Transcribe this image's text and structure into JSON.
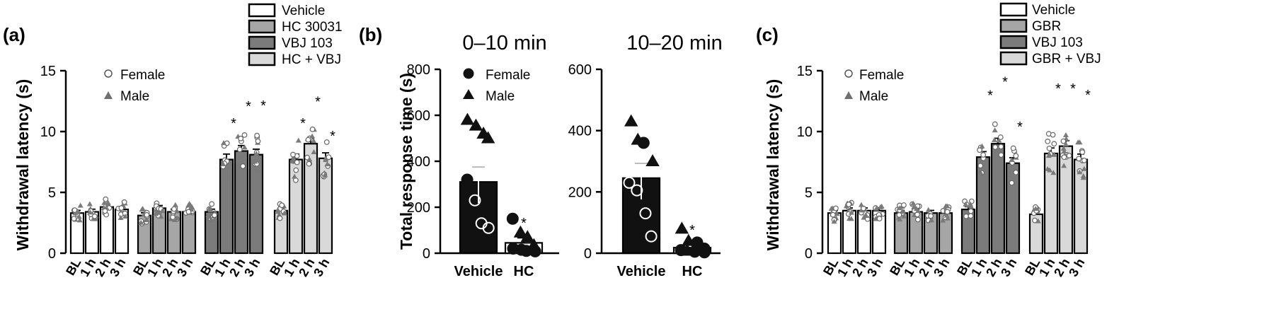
{
  "figure": {
    "colors": {
      "vehicle": "#ffffff",
      "drug_a": "#a6a6a6",
      "vbj": "#7b7b7b",
      "combo": "#d9d9d9",
      "black": "#111111",
      "male_marker": "#808080",
      "female_marker": "#ffffff"
    }
  },
  "chart_data": [
    {
      "panel_label": "(a)",
      "type": "bar",
      "ylabel": "Withdrawal latency (s)",
      "ylim": [
        0,
        15
      ],
      "yticks": [
        "0",
        "5",
        "10",
        "15"
      ],
      "legend": [
        "Vehicle",
        "HC 30031",
        "VBJ 103",
        "HC + VBJ"
      ],
      "marker_legend": [
        "Female",
        "Male"
      ],
      "timepoints": [
        "BL",
        "1 h",
        "2 h",
        "3 h"
      ],
      "series": [
        {
          "name": "Vehicle",
          "color_key": "vehicle",
          "values": [
            3.3,
            3.4,
            3.8,
            3.6
          ],
          "sig": [
            false,
            false,
            false,
            false
          ]
        },
        {
          "name": "HC 30031",
          "color_key": "drug_a",
          "values": [
            3.1,
            3.7,
            3.4,
            3.4
          ],
          "sig": [
            false,
            false,
            false,
            false
          ]
        },
        {
          "name": "VBJ 103",
          "color_key": "vbj",
          "values": [
            3.4,
            7.7,
            8.4,
            8.1
          ],
          "sig": [
            false,
            true,
            true,
            true
          ]
        },
        {
          "name": "HC + VBJ",
          "color_key": "combo",
          "values": [
            3.5,
            7.7,
            9.0,
            7.8
          ],
          "sig": [
            false,
            true,
            true,
            true
          ]
        }
      ]
    },
    {
      "panel_label": "(b)",
      "type": "bar",
      "ylabel": "Total response time (s)",
      "marker_legend": [
        "Female",
        "Male"
      ],
      "subpanels": [
        {
          "title": "0–10 min",
          "ylim": [
            0,
            800
          ],
          "yticks": [
            "0",
            "200",
            "400",
            "600",
            "800"
          ],
          "categories": [
            "Vehicle",
            "HC"
          ],
          "values": [
            310,
            45
          ],
          "errors": [
            65,
            22
          ],
          "sig": [
            false,
            true
          ],
          "points": [
            [
              [
                580,
                "M"
              ],
              [
                555,
                "M"
              ],
              [
                520,
                "M"
              ],
              [
                500,
                "M"
              ],
              [
                320,
                "F"
              ],
              [
                230,
                "F"
              ],
              [
                130,
                "F"
              ],
              [
                110,
                "F"
              ]
            ],
            [
              [
                150,
                "F"
              ],
              [
                90,
                "M"
              ],
              [
                70,
                "M"
              ],
              [
                35,
                "M"
              ],
              [
                20,
                "F"
              ],
              [
                15,
                "F"
              ],
              [
                10,
                "F"
              ],
              [
                8,
                "F"
              ]
            ]
          ]
        },
        {
          "title": "10–20 min",
          "ylim": [
            0,
            600
          ],
          "yticks": [
            "0",
            "200",
            "400",
            "600"
          ],
          "categories": [
            "Vehicle",
            "HC"
          ],
          "values": [
            245,
            18
          ],
          "errors": [
            48,
            10
          ],
          "sig": [
            false,
            true
          ],
          "points": [
            [
              [
                430,
                "M"
              ],
              [
                370,
                "M"
              ],
              [
                360,
                "F"
              ],
              [
                300,
                "M"
              ],
              [
                230,
                "F"
              ],
              [
                205,
                "F"
              ],
              [
                130,
                "F"
              ],
              [
                55,
                "F"
              ]
            ],
            [
              [
                80,
                "M"
              ],
              [
                40,
                "M"
              ],
              [
                35,
                "F"
              ],
              [
                15,
                "F"
              ],
              [
                10,
                "F"
              ],
              [
                8,
                "M"
              ],
              [
                5,
                "F"
              ],
              [
                3,
                "F"
              ]
            ]
          ]
        }
      ]
    },
    {
      "panel_label": "(c)",
      "type": "bar",
      "ylabel": "Withdrawal latency (s)",
      "ylim": [
        0,
        15
      ],
      "yticks": [
        "0",
        "5",
        "10",
        "15"
      ],
      "legend": [
        "Vehicle",
        "GBR",
        "VBJ 103",
        "GBR + VBJ"
      ],
      "marker_legend": [
        "Female",
        "Male"
      ],
      "timepoints": [
        "BL",
        "1 h",
        "2 h",
        "3 h"
      ],
      "series": [
        {
          "name": "Vehicle",
          "color_key": "vehicle",
          "values": [
            3.3,
            3.5,
            3.5,
            3.5
          ],
          "sig": [
            false,
            false,
            false,
            false
          ]
        },
        {
          "name": "GBR",
          "color_key": "drug_a",
          "values": [
            3.3,
            3.4,
            3.3,
            3.3
          ],
          "sig": [
            false,
            false,
            false,
            false
          ]
        },
        {
          "name": "VBJ 103",
          "color_key": "vbj",
          "values": [
            3.6,
            7.9,
            9.0,
            7.4
          ],
          "sig": [
            false,
            true,
            true,
            true
          ]
        },
        {
          "name": "GBR + VBJ",
          "color_key": "combo",
          "values": [
            3.2,
            8.2,
            8.8,
            7.7
          ],
          "sig": [
            false,
            true,
            true,
            true
          ]
        }
      ]
    }
  ]
}
